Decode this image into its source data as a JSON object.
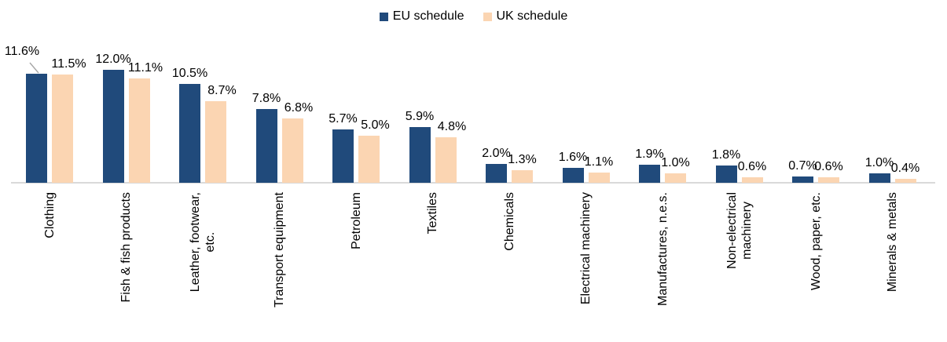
{
  "chart_data": {
    "type": "bar",
    "title": "",
    "xlabel": "",
    "ylabel": "",
    "ylim": [
      0,
      12.5
    ],
    "grid": false,
    "legend_position": "top-center",
    "category_label_rotation": -90,
    "axis_line_color": "#D9D9D9",
    "leader_line_color": "#A6A6A6",
    "categories": [
      "Clothing",
      "Fish & fish products",
      "Leather, footwear, etc.",
      "Transport equipment",
      "Petroleum",
      "Textiles",
      "Chemicals",
      "Electrical machinery",
      "Manufactures, n.e.s.",
      "Non-electrical machinery",
      "Wood, paper, etc.",
      "Minerals & metals"
    ],
    "category_wrap": {
      "2": [
        "Leather, footwear,",
        "etc."
      ],
      "9": [
        "Non-electrical",
        "machinery"
      ]
    },
    "series": [
      {
        "name": "EU schedule",
        "color": "#204A7B",
        "values": [
          11.6,
          12.0,
          10.5,
          7.8,
          5.7,
          5.9,
          2.0,
          1.6,
          1.9,
          1.8,
          0.7,
          1.0
        ],
        "value_labels": [
          "11.6%",
          "12.0%",
          "10.5%",
          "7.8%",
          "5.7%",
          "5.9%",
          "2.0%",
          "1.6%",
          "1.9%",
          "1.8%",
          "0.7%",
          "1.0%"
        ]
      },
      {
        "name": "UK schedule",
        "color": "#FBD5B2",
        "values": [
          11.5,
          11.1,
          8.7,
          6.8,
          5.0,
          4.8,
          1.3,
          1.1,
          1.0,
          0.6,
          0.6,
          0.4
        ],
        "value_labels": [
          "11.5%",
          "11.1%",
          "8.7%",
          "6.8%",
          "5.0%",
          "4.8%",
          "1.3%",
          "1.1%",
          "1.0%",
          "0.6%",
          "0.6%",
          "0.4%"
        ]
      }
    ]
  }
}
